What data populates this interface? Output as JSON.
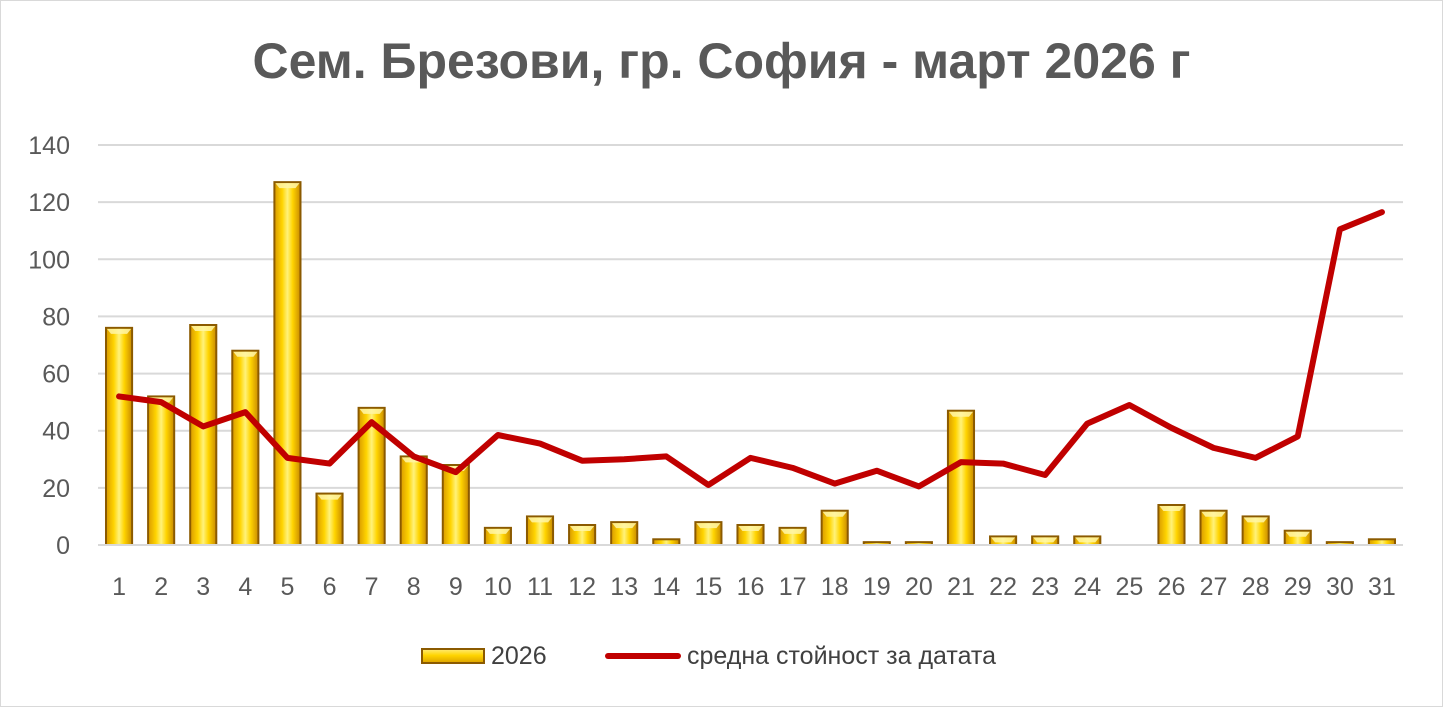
{
  "chart_data": {
    "type": "bar",
    "title": "Сем. Брезови, гр. София - март 2026 г",
    "xlabel": "",
    "ylabel": "",
    "ylim": [
      0,
      140
    ],
    "yticks": [
      "0",
      "20",
      "40",
      "60",
      "80",
      "100",
      "120",
      "140"
    ],
    "categories": [
      "1",
      "2",
      "3",
      "4",
      "5",
      "6",
      "7",
      "8",
      "9",
      "10",
      "11",
      "12",
      "13",
      "14",
      "15",
      "16",
      "17",
      "18",
      "19",
      "20",
      "21",
      "22",
      "23",
      "24",
      "25",
      "26",
      "27",
      "28",
      "29",
      "30",
      "31"
    ],
    "grid": true,
    "legend_position": "bottom",
    "series": [
      {
        "name": "2026",
        "type": "bar",
        "color": "#ffd400",
        "values": [
          76,
          52,
          77,
          68,
          127,
          18,
          48,
          31,
          28,
          6,
          10,
          7,
          8,
          2,
          8,
          7,
          6,
          12,
          1,
          1,
          47,
          3,
          3,
          3,
          0,
          14,
          12,
          10,
          5,
          1,
          2
        ]
      },
      {
        "name": "средна стойност за датата",
        "type": "line",
        "color": "#c00000",
        "values": [
          52,
          50,
          41.5,
          46.5,
          30.5,
          28.5,
          43,
          31,
          25.5,
          38.5,
          35.5,
          29.5,
          30,
          31,
          21,
          30.5,
          27,
          21.5,
          26,
          20.5,
          29,
          28.5,
          24.5,
          42.5,
          49,
          41,
          34,
          30.5,
          38,
          110.5,
          116.5
        ]
      }
    ]
  },
  "legend": {
    "bar_label": "2026",
    "line_label": "средна стойност за датата"
  }
}
